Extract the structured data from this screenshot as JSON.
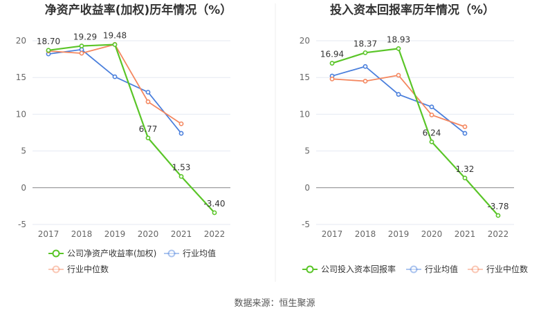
{
  "source_text": "数据来源：恒生聚源",
  "colors": {
    "company": "#5ac528",
    "avg": "#4a7fdc",
    "median": "#f4875f",
    "grid": "#e5e9f2",
    "axis": "#888888"
  },
  "chart_data": [
    {
      "type": "line",
      "title": "净资产收益率(加权)历年情况（%）",
      "x": [
        "2017",
        "2018",
        "2019",
        "2020",
        "2021",
        "2022"
      ],
      "yticks": [
        "20",
        "15",
        "10",
        "5",
        "0",
        "-5"
      ],
      "ylim": [
        -5,
        20
      ],
      "series": [
        {
          "name": "公司净资产收益率(加权)",
          "key": "company",
          "values": [
            18.7,
            19.29,
            19.48,
            6.77,
            1.53,
            -3.4
          ],
          "labels": [
            "18.70",
            "19.29",
            "19.48",
            "6.77",
            "1.53",
            "-3.40"
          ]
        },
        {
          "name": "行业均值",
          "key": "avg",
          "values": [
            18.2,
            18.8,
            15.1,
            13.0,
            7.4,
            null
          ]
        },
        {
          "name": "行业中位数",
          "key": "median",
          "values": [
            18.6,
            18.3,
            19.5,
            11.7,
            8.7,
            null
          ]
        }
      ]
    },
    {
      "type": "line",
      "title": "投入资本回报率历年情况（%）",
      "x": [
        "2017",
        "2018",
        "2019",
        "2020",
        "2021",
        "2022"
      ],
      "yticks": [
        "20",
        "15",
        "10",
        "5",
        "0",
        "-5"
      ],
      "ylim": [
        -5,
        20
      ],
      "series": [
        {
          "name": "公司投入资本回报率",
          "key": "company",
          "values": [
            16.94,
            18.37,
            18.93,
            6.24,
            1.32,
            -3.78
          ],
          "labels": [
            "16.94",
            "18.37",
            "18.93",
            "6.24",
            "1.32",
            "-3.78"
          ]
        },
        {
          "name": "行业均值",
          "key": "avg",
          "values": [
            15.2,
            16.5,
            12.7,
            11.0,
            7.4,
            null
          ]
        },
        {
          "name": "行业中位数",
          "key": "median",
          "values": [
            14.8,
            14.5,
            15.3,
            9.9,
            8.3,
            null
          ]
        }
      ]
    }
  ]
}
